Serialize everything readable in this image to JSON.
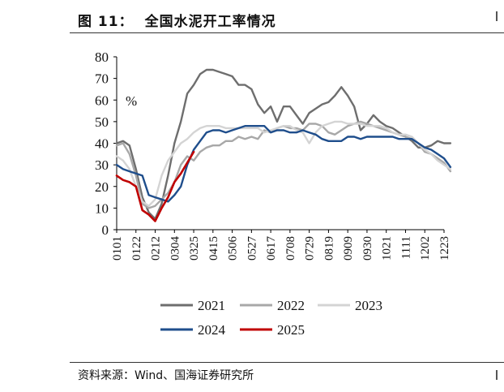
{
  "header": {
    "figure_label": "图 11：",
    "title": "全国水泥开工率情况"
  },
  "footer": {
    "source": "资料来源：Wind、国海证券研究所"
  },
  "chart_data": {
    "type": "line",
    "title": "全国水泥开工率情况",
    "unit_label": "%",
    "xlabel": "",
    "ylabel": "%",
    "ylim": [
      0,
      80
    ],
    "yticks": [
      0,
      10,
      20,
      30,
      40,
      50,
      60,
      70,
      80
    ],
    "xlim": [
      0,
      51
    ],
    "x_tick_labels": [
      "0101",
      "0122",
      "0212",
      "0304",
      "0325",
      "0415",
      "0506",
      "0527",
      "0617",
      "0708",
      "0729",
      "0819",
      "0909",
      "0930",
      "1021",
      "1111",
      "1202",
      "1223"
    ],
    "legend_position": "bottom",
    "series": [
      {
        "name": "2021",
        "color": "#6e6e6e",
        "values": [
          40,
          41,
          39,
          28,
          15,
          8,
          5,
          12,
          25,
          40,
          50,
          63,
          67,
          72,
          74,
          74,
          73,
          72,
          71,
          67,
          67,
          65,
          58,
          54,
          57,
          50,
          57,
          57,
          53,
          49,
          54,
          56,
          58,
          59,
          62,
          66,
          62,
          57,
          46,
          49,
          53,
          50,
          48,
          47,
          45,
          43,
          41,
          38,
          38,
          39,
          41,
          40,
          40
        ]
      },
      {
        "name": "2022",
        "color": "#a8a8a8",
        "values": [
          39,
          40,
          35,
          25,
          12,
          10,
          11,
          14,
          17,
          22,
          30,
          34,
          32,
          36,
          38,
          39,
          39,
          41,
          41,
          43,
          42,
          43,
          42,
          46,
          45,
          47,
          48,
          47,
          47,
          46,
          49,
          49,
          48,
          45,
          44,
          46,
          48,
          49,
          50,
          49,
          48,
          47,
          46,
          45,
          44,
          43,
          42,
          40,
          36,
          35,
          33,
          31,
          27
        ]
      },
      {
        "name": "2023",
        "color": "#d4d4d4",
        "values": [
          34,
          32,
          28,
          20,
          13,
          11,
          14,
          25,
          32,
          36,
          40,
          42,
          45,
          47,
          48,
          48,
          48,
          47,
          47,
          47,
          47,
          47,
          47,
          45,
          46,
          47,
          48,
          48,
          46,
          45,
          40,
          45,
          48,
          49,
          50,
          50,
          49,
          49,
          49,
          48,
          48,
          48,
          47,
          45,
          44,
          44,
          43,
          40,
          37,
          35,
          32,
          30,
          28
        ]
      },
      {
        "name": "2024",
        "color": "#1f4e8c",
        "values": [
          30,
          28,
          27,
          26,
          25,
          16,
          15,
          14,
          13,
          16,
          20,
          30,
          37,
          41,
          45,
          46,
          46,
          45,
          46,
          47,
          48,
          48,
          48,
          48,
          45,
          46,
          46,
          45,
          45,
          46,
          45,
          44,
          42,
          41,
          41,
          41,
          43,
          43,
          42,
          43,
          43,
          43,
          43,
          43,
          42,
          42,
          42,
          40,
          38,
          37,
          35,
          33,
          29
        ]
      },
      {
        "name": "2025",
        "color": "#c00000",
        "values": [
          25,
          23,
          22,
          20,
          9,
          7,
          4,
          10,
          15,
          22,
          26,
          31,
          36
        ]
      }
    ]
  }
}
